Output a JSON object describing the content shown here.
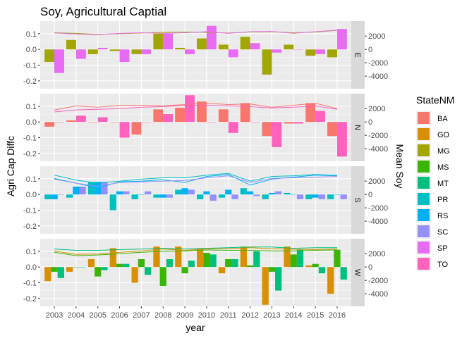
{
  "chart_data": {
    "type": "bar",
    "title": "Soy, Agricultural Captial",
    "xlabel": "year",
    "ylabel_left": "Agri Cap Diffc",
    "ylabel_right": "Mean Soy",
    "legend_title": "StateNM",
    "legend_position": "right",
    "grid": true,
    "years": [
      2003,
      2004,
      2005,
      2006,
      2007,
      2008,
      2009,
      2010,
      2011,
      2012,
      2013,
      2014,
      2015,
      2016
    ],
    "y_left": {
      "lim": [
        -0.25,
        0.18
      ],
      "ticks": [
        0.1,
        0.0,
        -0.1,
        -0.2
      ],
      "tick_labels": [
        "0.1",
        "0.0",
        "-0.1",
        "-0.2"
      ]
    },
    "y_right": {
      "lim": [
        -5882,
        4235
      ],
      "ticks": [
        2000,
        0,
        -2000,
        -4000
      ],
      "tick_labels": [
        "2000",
        "0",
        "-2000",
        "-4000"
      ]
    },
    "states": [
      {
        "name": "BA",
        "color": "#F8766D"
      },
      {
        "name": "GO",
        "color": "#D89000"
      },
      {
        "name": "MG",
        "color": "#A3A500"
      },
      {
        "name": "MS",
        "color": "#39B600"
      },
      {
        "name": "MT",
        "color": "#00BF7D"
      },
      {
        "name": "PR",
        "color": "#00BFC4"
      },
      {
        "name": "RS",
        "color": "#00B0F6"
      },
      {
        "name": "SC",
        "color": "#9590FF"
      },
      {
        "name": "SP",
        "color": "#E76BF3"
      },
      {
        "name": "TO",
        "color": "#FF62BC"
      }
    ],
    "panels": [
      {
        "strip": "E",
        "bars": [
          {
            "state": "MG",
            "values": [
              -0.08,
              0.06,
              -0.03,
              -0.01,
              -0.03,
              0.1,
              0.01,
              0.07,
              0.03,
              0.08,
              -0.16,
              0.03,
              -0.04,
              -0.05
            ]
          },
          {
            "state": "SP",
            "values": [
              -0.15,
              -0.06,
              0.01,
              -0.08,
              -0.03,
              0.1,
              -0.03,
              0.15,
              -0.05,
              0.04,
              -0.02,
              0.0,
              -0.03,
              0.13
            ]
          }
        ],
        "lines": [
          {
            "state": "MG",
            "values": [
              2500,
              2400,
              2250,
              2350,
              2450,
              2550,
              2600,
              2550,
              2450,
              2600,
              2650,
              2500,
              2600,
              2850
            ]
          },
          {
            "state": "SP",
            "values": [
              2450,
              2300,
              2200,
              2400,
              2500,
              2400,
              2500,
              2650,
              2400,
              2650,
              2700,
              2400,
              2650,
              2900
            ]
          }
        ]
      },
      {
        "strip": "N",
        "bars": [
          {
            "state": "BA",
            "values": [
              -0.03,
              0.01,
              0.0,
              0.0,
              -0.08,
              0.08,
              0.09,
              0.13,
              0.08,
              0.12,
              -0.09,
              -0.01,
              0.12,
              -0.09
            ]
          },
          {
            "state": "TO",
            "values": [
              0.0,
              0.04,
              0.03,
              -0.1,
              0.0,
              0.05,
              0.17,
              0.0,
              -0.07,
              0.0,
              -0.16,
              -0.01,
              0.07,
              -0.22
            ]
          }
        ],
        "lines": [
          {
            "state": "BA",
            "values": [
              1800,
              2400,
              2200,
              2500,
              2500,
              2400,
              2600,
              2800,
              2600,
              2700,
              2200,
              2500,
              2800,
              2000
            ]
          },
          {
            "state": "TO",
            "values": [
              1500,
              1800,
              1900,
              2000,
              2200,
              2300,
              2500,
              2500,
              2400,
              2300,
              2100,
              2200,
              2400,
              1900
            ]
          }
        ]
      },
      {
        "strip": "S",
        "bars": [
          {
            "state": "PR",
            "values": [
              -0.03,
              -0.02,
              0.08,
              -0.1,
              -0.03,
              -0.02,
              0.03,
              -0.03,
              -0.02,
              0.04,
              -0.03,
              0.01,
              -0.03,
              -0.03
            ]
          },
          {
            "state": "RS",
            "values": [
              -0.03,
              0.05,
              0.08,
              0.02,
              0.0,
              -0.02,
              0.04,
              0.02,
              0.03,
              0.02,
              0.01,
              0.0,
              -0.02,
              0.0
            ]
          },
          {
            "state": "SC",
            "values": [
              0.0,
              0.05,
              0.08,
              0.02,
              0.02,
              -0.02,
              0.03,
              -0.04,
              -0.03,
              -0.01,
              0.02,
              -0.03,
              -0.03,
              -0.03
            ]
          }
        ],
        "lines": [
          {
            "state": "PR",
            "values": [
              2900,
              2150,
              1700,
              2000,
              2300,
              2500,
              2500,
              2900,
              3150,
              2000,
              2700,
              2800,
              3000,
              2850
            ]
          },
          {
            "state": "RS",
            "values": [
              2400,
              1700,
              1000,
              1900,
              2000,
              2200,
              1800,
              2700,
              3000,
              1400,
              2300,
              2600,
              2900,
              2800
            ]
          },
          {
            "state": "SC",
            "values": [
              2300,
              1700,
              1200,
              1800,
              1900,
              2000,
              2100,
              2500,
              2800,
              1800,
              2400,
              2500,
              2600,
              2700
            ]
          }
        ]
      },
      {
        "strip": "W",
        "bars": [
          {
            "state": "GO",
            "values": [
              -0.09,
              -0.03,
              0.05,
              0.12,
              -0.1,
              0.13,
              0.13,
              0.12,
              -0.04,
              0.13,
              -0.24,
              0.13,
              0.01,
              -0.17
            ]
          },
          {
            "state": "MS",
            "values": [
              -0.03,
              0.0,
              -0.06,
              0.02,
              0.05,
              -0.12,
              -0.04,
              0.09,
              0.05,
              0.01,
              -0.03,
              0.08,
              0.02,
              0.11
            ]
          },
          {
            "state": "MT",
            "values": [
              -0.07,
              0.0,
              -0.02,
              0.02,
              -0.05,
              0.05,
              0.04,
              0.08,
              0.05,
              0.1,
              -0.15,
              0.11,
              -0.04,
              -0.08
            ]
          }
        ],
        "lines": [
          {
            "state": "GO",
            "values": [
              2400,
              1900,
              1950,
              2200,
              2400,
              2700,
              2500,
              2700,
              2750,
              2900,
              2750,
              2650,
              2600,
              2700
            ]
          },
          {
            "state": "MS",
            "values": [
              2200,
              1700,
              1800,
              2000,
              2200,
              2350,
              2400,
              2550,
              2500,
              2500,
              2400,
              2400,
              2500,
              2550
            ]
          },
          {
            "state": "MT",
            "values": [
              2700,
              2500,
              2500,
              2600,
              2700,
              2800,
              2700,
              2800,
              2900,
              3000,
              3000,
              2800,
              2900,
              2900
            ]
          }
        ]
      }
    ]
  }
}
